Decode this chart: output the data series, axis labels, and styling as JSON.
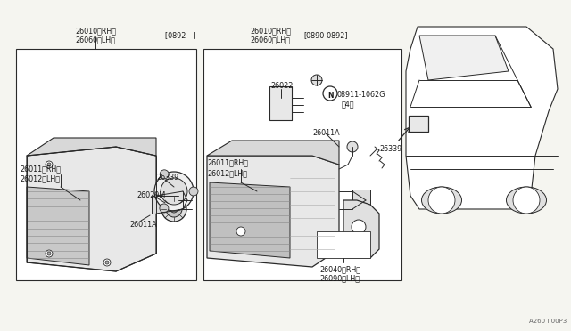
{
  "bg_color": "#f5f5f0",
  "line_color": "#2a2a2a",
  "text_color": "#1a1a1a",
  "footnote": "A260 I 00P3",
  "bracket1": "[0892-  ]",
  "bracket2": "[0890-0892]",
  "fs": 5.8
}
